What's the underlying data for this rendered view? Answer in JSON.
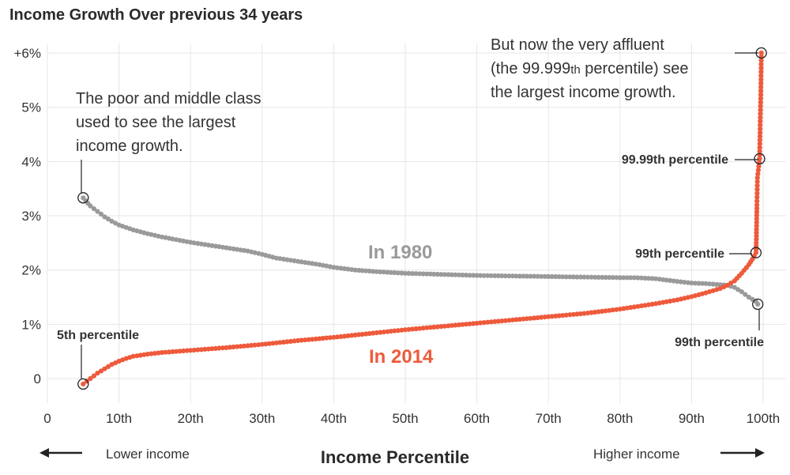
{
  "chart_data": {
    "type": "scatter",
    "title": "Income Growth Over previous 34 years",
    "xlabel": "Income Percentile",
    "ylabel": "",
    "xlim": [
      0,
      100
    ],
    "ylim": [
      0,
      6
    ],
    "x_ticks": [
      {
        "value": 0,
        "label": "0"
      },
      {
        "value": 10,
        "label": "10th"
      },
      {
        "value": 20,
        "label": "20th"
      },
      {
        "value": 30,
        "label": "30th"
      },
      {
        "value": 40,
        "label": "40th"
      },
      {
        "value": 50,
        "label": "50th"
      },
      {
        "value": 60,
        "label": "60th"
      },
      {
        "value": 70,
        "label": "70th"
      },
      {
        "value": 80,
        "label": "80th"
      },
      {
        "value": 90,
        "label": "90th"
      },
      {
        "value": 100,
        "label": "100th"
      }
    ],
    "y_ticks": [
      {
        "value": 0,
        "label": "0"
      },
      {
        "value": 1,
        "label": "1%"
      },
      {
        "value": 2,
        "label": "2%"
      },
      {
        "value": 3,
        "label": "3%"
      },
      {
        "value": 4,
        "label": "4%"
      },
      {
        "value": 5,
        "label": "5%"
      },
      {
        "value": 6,
        "label": "+6%"
      }
    ],
    "grid": true,
    "series": [
      {
        "name": "In 1980",
        "color": "#9a9a9a",
        "points": [
          [
            5,
            3.33
          ],
          [
            6,
            3.18
          ],
          [
            7,
            3.08
          ],
          [
            8,
            2.98
          ],
          [
            9,
            2.9
          ],
          [
            10,
            2.83
          ],
          [
            12,
            2.74
          ],
          [
            14,
            2.67
          ],
          [
            16,
            2.61
          ],
          [
            18,
            2.56
          ],
          [
            20,
            2.51
          ],
          [
            22,
            2.47
          ],
          [
            25,
            2.41
          ],
          [
            28,
            2.35
          ],
          [
            30,
            2.29
          ],
          [
            32,
            2.22
          ],
          [
            35,
            2.16
          ],
          [
            38,
            2.1
          ],
          [
            40,
            2.05
          ],
          [
            43,
            2.0
          ],
          [
            46,
            1.97
          ],
          [
            50,
            1.94
          ],
          [
            55,
            1.92
          ],
          [
            60,
            1.9
          ],
          [
            65,
            1.89
          ],
          [
            70,
            1.88
          ],
          [
            75,
            1.87
          ],
          [
            80,
            1.86
          ],
          [
            82,
            1.86
          ],
          [
            85,
            1.84
          ],
          [
            88,
            1.79
          ],
          [
            90,
            1.76
          ],
          [
            92,
            1.75
          ],
          [
            94,
            1.73
          ],
          [
            95,
            1.72
          ],
          [
            96,
            1.68
          ],
          [
            97,
            1.6
          ],
          [
            98,
            1.5
          ],
          [
            99,
            1.42
          ],
          [
            99.9,
            1.37
          ]
        ]
      },
      {
        "name": "In 2014",
        "color": "#ee5a3c",
        "points": [
          [
            5,
            -0.1
          ],
          [
            6,
            0.0
          ],
          [
            7,
            0.1
          ],
          [
            8,
            0.18
          ],
          [
            9,
            0.26
          ],
          [
            10,
            0.32
          ],
          [
            11,
            0.37
          ],
          [
            12,
            0.41
          ],
          [
            14,
            0.45
          ],
          [
            16,
            0.48
          ],
          [
            20,
            0.52
          ],
          [
            25,
            0.57
          ],
          [
            30,
            0.63
          ],
          [
            35,
            0.7
          ],
          [
            40,
            0.76
          ],
          [
            45,
            0.83
          ],
          [
            50,
            0.9
          ],
          [
            55,
            0.96
          ],
          [
            60,
            1.02
          ],
          [
            65,
            1.08
          ],
          [
            70,
            1.14
          ],
          [
            75,
            1.2
          ],
          [
            80,
            1.28
          ],
          [
            85,
            1.38
          ],
          [
            88,
            1.45
          ],
          [
            90,
            1.51
          ],
          [
            92,
            1.58
          ],
          [
            94,
            1.66
          ],
          [
            95,
            1.72
          ],
          [
            96,
            1.8
          ],
          [
            97,
            1.94
          ],
          [
            98,
            2.1
          ],
          [
            98.5,
            2.2
          ],
          [
            99,
            2.32
          ],
          [
            99.3,
            2.5
          ],
          [
            99.5,
            2.75
          ],
          [
            99.7,
            3.2
          ],
          [
            99.85,
            3.7
          ],
          [
            99.99,
            4.05
          ],
          [
            99.995,
            4.6
          ],
          [
            99.998,
            5.3
          ],
          [
            99.999,
            6.0
          ]
        ]
      }
    ],
    "annotations": {
      "poor_middle": [
        "The poor and middle class",
        "used to see the largest",
        "income growth."
      ],
      "affluent_line1": "But now the very affluent",
      "affluent_line2_pre": "(the 99.999",
      "affluent_line2_sup": "th",
      "affluent_line2_post": " percentile) see",
      "affluent_line3": "the largest income growth.",
      "label_5th": "5th percentile",
      "label_9999": "99.99th percentile",
      "label_99_2014": "99th percentile",
      "label_99_1980": "99th percentile"
    },
    "footer": {
      "lower": "Lower income",
      "higher": "Higher income"
    }
  }
}
